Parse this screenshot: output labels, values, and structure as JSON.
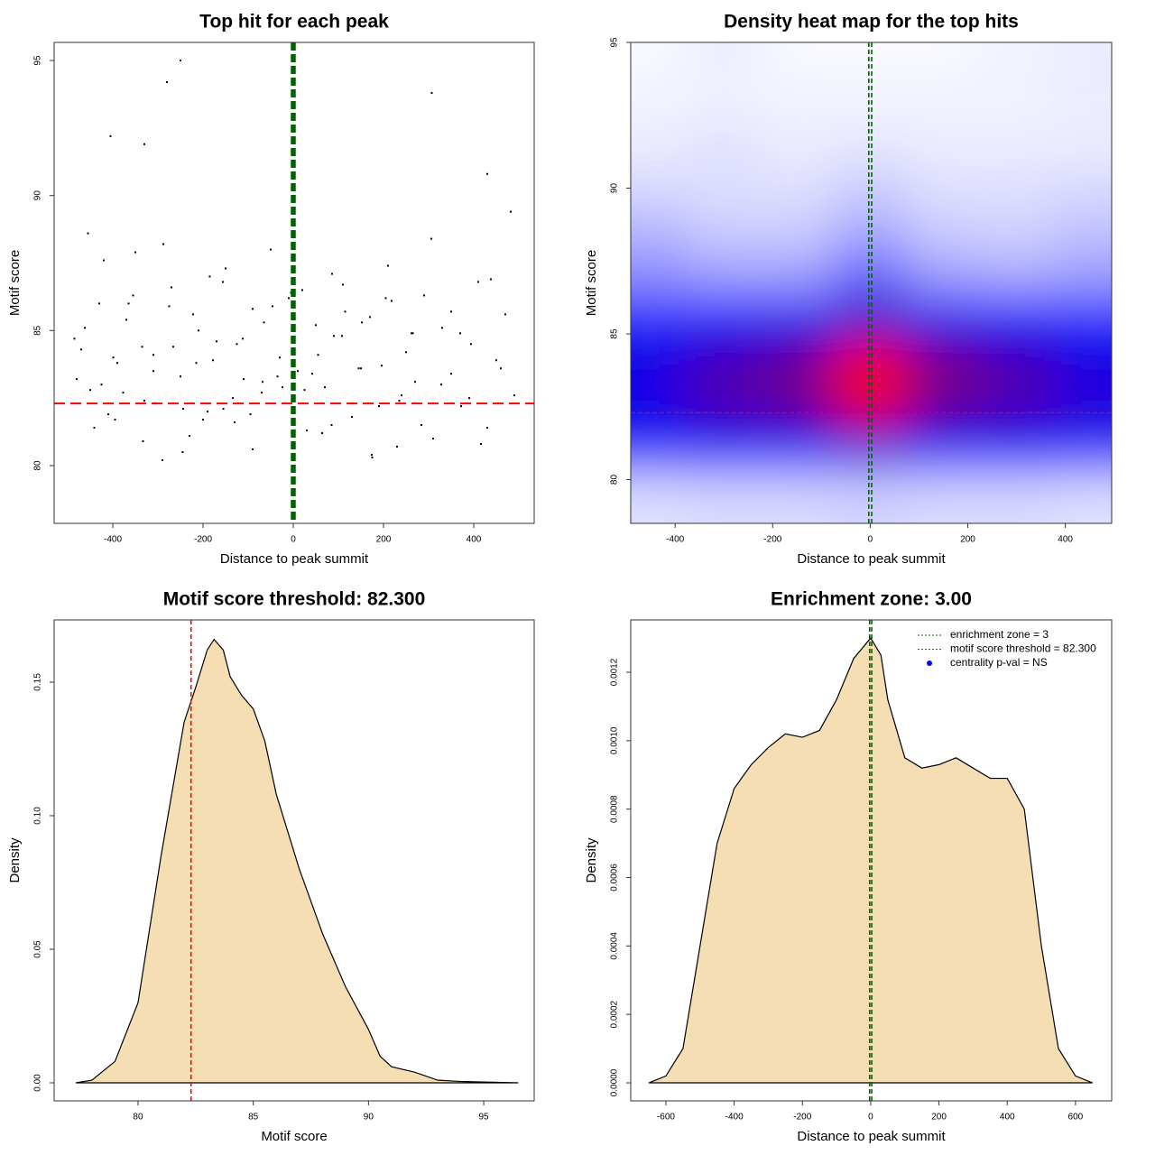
{
  "chart_data": [
    {
      "type": "scatter",
      "title": "Top hit for each peak",
      "xlabel": "Distance to peak summit",
      "ylabel": "Motif score",
      "xlim": [
        -530,
        534
      ],
      "ylim": [
        77.86,
        95.67
      ],
      "xticks": [
        -400,
        -200,
        0,
        200,
        400
      ],
      "yticks": [
        80,
        85,
        90,
        95
      ],
      "color": "#000000",
      "x": [
        -480,
        -462,
        -441,
        -420,
        -399,
        -377,
        -355,
        -333,
        -310,
        -288,
        -266,
        -244,
        -222,
        -200,
        -178,
        -156,
        -134,
        -112,
        -90,
        -68,
        -46,
        -24,
        -2,
        20,
        42,
        64,
        86,
        108,
        130,
        152,
        174,
        196,
        218,
        240,
        262,
        284,
        306,
        328,
        350,
        372,
        394,
        416,
        438,
        460,
        482,
        -470,
        -450,
        -430,
        -410,
        -390,
        -370,
        -350,
        -330,
        -310,
        -290,
        -270,
        -250,
        -230,
        -210,
        -190,
        -170,
        -150,
        -130,
        -110,
        -90,
        -70,
        -50,
        -30,
        -10,
        10,
        30,
        50,
        70,
        90,
        110,
        130,
        150,
        170,
        190,
        210,
        230,
        250,
        270,
        290,
        310,
        330,
        350,
        370,
        390,
        410,
        430,
        450,
        470,
        490,
        -485,
        -455,
        -425,
        -395,
        -365,
        -335,
        -305,
        -275,
        -245,
        -215,
        -185,
        -155,
        -125,
        -95,
        -65,
        -35,
        -5,
        25,
        55,
        85,
        115,
        145,
        175,
        205,
        235,
        265,
        -250,
        -280,
        307,
        -405,
        -330,
        430
      ],
      "y": [
        83.2,
        85.1,
        81.4,
        87.6,
        84.0,
        82.7,
        86.3,
        80.9,
        83.5,
        88.2,
        84.4,
        82.1,
        85.6,
        81.7,
        83.9,
        86.8,
        82.5,
        84.7,
        80.6,
        83.1,
        85.9,
        82.9,
        84.2,
        86.5,
        83.4,
        81.2,
        87.1,
        84.8,
        82.3,
        85.3,
        80.4,
        83.7,
        86.1,
        82.6,
        84.9,
        81.5,
        88.4,
        83.0,
        85.7,
        82.2,
        84.5,
        80.8,
        86.9,
        83.6,
        89.4,
        84.3,
        82.8,
        86.0,
        81.9,
        83.8,
        85.4,
        87.9,
        82.4,
        84.1,
        80.2,
        86.6,
        83.3,
        81.1,
        85.0,
        82.0,
        84.6,
        87.3,
        81.6,
        83.2,
        85.8,
        82.7,
        88.0,
        84.0,
        86.2,
        83.5,
        81.3,
        85.2,
        82.9,
        84.8,
        86.7,
        81.8,
        83.6,
        85.5,
        82.2,
        87.4,
        80.7,
        84.2,
        83.1,
        86.3,
        81.0,
        85.1,
        83.4,
        84.9,
        82.5,
        86.8,
        81.4,
        83.9,
        85.6,
        82.6,
        84.7,
        88.6,
        83.0,
        81.7,
        86.0,
        84.4,
        82.3,
        85.9,
        80.5,
        83.8,
        87.0,
        82.1,
        84.5,
        81.9,
        85.3,
        83.3,
        86.4,
        82.8,
        84.1,
        81.5,
        85.7,
        83.6,
        80.3,
        86.2,
        82.4,
        84.9,
        95.0,
        94.2,
        93.8,
        92.2,
        91.9,
        90.8
      ],
      "vlines": [
        -3,
        0,
        3
      ],
      "vline_color": "#006400",
      "hlines": [
        82.3
      ],
      "hline_color": "#ff0000"
    },
    {
      "type": "heatmap",
      "title": "Density heat map for the top hits",
      "xlabel": "Distance to peak summit",
      "ylabel": "Motif score",
      "xlim": [
        -491,
        495
      ],
      "ylim": [
        78.5,
        95
      ],
      "xticks": [
        -400,
        -200,
        0,
        200,
        400
      ],
      "yticks": [
        80,
        85,
        90,
        95
      ],
      "x": [
        -450,
        -300,
        -150,
        0,
        150,
        300,
        450
      ],
      "y": [
        79.5,
        81,
        82.5,
        84,
        85.5,
        87,
        88.5,
        90,
        91.5,
        93,
        94.5
      ],
      "z": [
        [
          0.05,
          0.06,
          0.06,
          0.07,
          0.06,
          0.06,
          0.05
        ],
        [
          0.35,
          0.4,
          0.4,
          0.45,
          0.4,
          0.4,
          0.35
        ],
        [
          0.45,
          0.55,
          0.6,
          0.85,
          0.6,
          0.55,
          0.48
        ],
        [
          0.45,
          0.55,
          0.62,
          0.95,
          0.65,
          0.55,
          0.45
        ],
        [
          0.35,
          0.4,
          0.42,
          0.5,
          0.42,
          0.4,
          0.35
        ],
        [
          0.18,
          0.15,
          0.15,
          0.25,
          0.15,
          0.13,
          0.15
        ],
        [
          0.12,
          0.08,
          0.08,
          0.14,
          0.08,
          0.07,
          0.1
        ],
        [
          0.06,
          0.05,
          0.05,
          0.08,
          0.05,
          0.05,
          0.06
        ],
        [
          0.03,
          0.05,
          0.03,
          0.04,
          0.03,
          0.03,
          0.03
        ],
        [
          0.02,
          0.02,
          0.02,
          0.02,
          0.02,
          0.02,
          0.03
        ],
        [
          0.01,
          0.03,
          0.01,
          0.01,
          0.01,
          0.02,
          0.03
        ]
      ],
      "colors": [
        "#ffffff",
        "#0000ff",
        "#ff0000"
      ],
      "vlines": [
        -3,
        3
      ],
      "vline_color": "#006400",
      "hlines": [
        82.3
      ],
      "hline_color": "#b22222"
    },
    {
      "type": "area",
      "title": "Motif score threshold: 82.300",
      "xlabel": "Motif score",
      "ylabel": "Density",
      "xlim": [
        76.36,
        97.19
      ],
      "ylim": [
        -0.00676,
        0.1733
      ],
      "xticks": [
        80,
        85,
        90,
        95
      ],
      "yticks": [
        {
          "value": 0,
          "label": "0.00"
        },
        {
          "value": 0.05,
          "label": "0.05"
        },
        {
          "value": 0.1,
          "label": "0.10"
        },
        {
          "value": 0.15,
          "label": "0.15"
        }
      ],
      "color": "#f5deb3",
      "x": [
        77.3,
        78,
        79,
        80,
        81,
        82,
        82.5,
        83,
        83.3,
        83.7,
        84,
        84.5,
        85,
        85.5,
        86,
        87,
        88,
        89,
        90,
        90.5,
        91,
        92,
        93,
        94,
        95,
        96.5
      ],
      "values": [
        0,
        0.001,
        0.008,
        0.03,
        0.085,
        0.135,
        0.148,
        0.162,
        0.166,
        0.162,
        0.152,
        0.145,
        0.14,
        0.128,
        0.108,
        0.08,
        0.056,
        0.036,
        0.02,
        0.01,
        0.006,
        0.004,
        0.001,
        0.0005,
        0.0003,
        0
      ],
      "vlines": [
        82.3
      ],
      "vline_color": "#ff0000"
    },
    {
      "type": "area",
      "title": "Enrichment zone: 3.00",
      "xlabel": "Distance to peak summit",
      "ylabel": "Density",
      "xlim": [
        -703,
        706
      ],
      "ylim": [
        -5.27e-05,
        0.001353
      ],
      "xticks": [
        -600,
        -400,
        -200,
        0,
        200,
        400,
        600
      ],
      "yticks": [
        {
          "value": 0,
          "label": "0.0000"
        },
        {
          "value": 0.0002,
          "label": "0.0002"
        },
        {
          "value": 0.0004,
          "label": "0.0004"
        },
        {
          "value": 0.0006,
          "label": "0.0006"
        },
        {
          "value": 0.0008,
          "label": "0.0008"
        },
        {
          "value": 0.001,
          "label": "0.0010"
        },
        {
          "value": 0.0012,
          "label": "0.0012"
        }
      ],
      "color": "#f5deb3",
      "x": [
        -650,
        -600,
        -550,
        -500,
        -450,
        -400,
        -350,
        -300,
        -250,
        -200,
        -150,
        -100,
        -50,
        0,
        30,
        50,
        100,
        150,
        200,
        250,
        300,
        350,
        400,
        450,
        500,
        550,
        600,
        650
      ],
      "values": [
        0,
        2e-05,
        0.0001,
        0.0004,
        0.0007,
        0.00086,
        0.00093,
        0.00098,
        0.00102,
        0.00101,
        0.00103,
        0.00112,
        0.00124,
        0.0013,
        0.00125,
        0.00112,
        0.00095,
        0.00092,
        0.00093,
        0.00095,
        0.00092,
        0.00089,
        0.00089,
        0.0008,
        0.0004,
        0.0001,
        2e-05,
        0
      ],
      "vlines": [
        -3,
        3
      ],
      "vline_color": "#006400",
      "legend": {
        "position": "top-right",
        "entries": [
          {
            "label": "enrichment zone = 3",
            "color": "#006400",
            "marker": "line"
          },
          {
            "label": "motif score threshold = 82.300",
            "color": "#ff0000",
            "marker": "line"
          },
          {
            "label": "centrality p-val = NS",
            "color": "#0000ff",
            "marker": "dot"
          }
        ]
      }
    }
  ]
}
